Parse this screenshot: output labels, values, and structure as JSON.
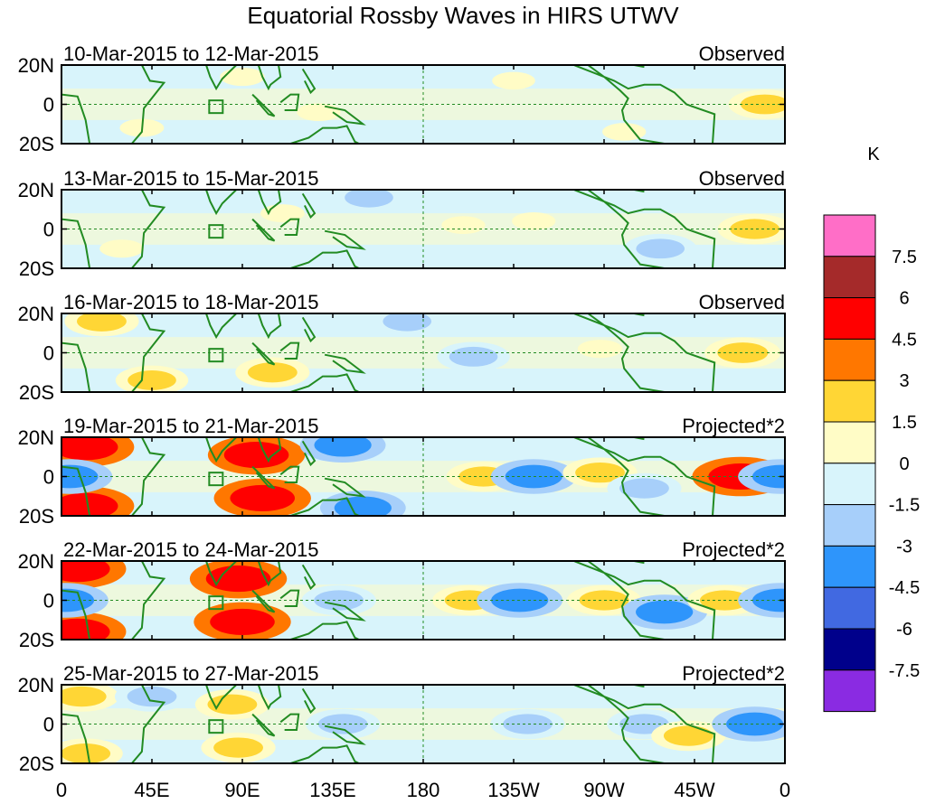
{
  "chart_data": {
    "type": "heatmap",
    "title": "Equatorial Rossby Waves in HIRS UTWV",
    "units": "K",
    "x_ticks": [
      "0",
      "45E",
      "90E",
      "135E",
      "180",
      "135W",
      "90W",
      "45W",
      "0"
    ],
    "y_ticks": [
      "20N",
      "0",
      "20S"
    ],
    "x_range_deg": [
      0,
      360
    ],
    "y_range_deg": [
      -20,
      20
    ],
    "colorbar": {
      "levels": [
        "7.5",
        "6",
        "4.5",
        "3",
        "1.5",
        "0",
        "-1.5",
        "-3",
        "-4.5",
        "-6",
        "-7.5"
      ],
      "colors": [
        "#ff6ec7",
        "#a52a2a",
        "#ff0000",
        "#ff7700",
        "#ffd635",
        "#fffcc6",
        "#d8f4fb",
        "#a7cffa",
        "#2e95fb",
        "#4169e1",
        "#00008b",
        "#8a2be2"
      ]
    },
    "panels": [
      {
        "period": "10-Mar-2015 to 12-Mar-2015",
        "label": "Observed",
        "anomalies": [
          {
            "lon": 40,
            "lat": -12,
            "value": 0.8
          },
          {
            "lon": 90,
            "lat": 14,
            "value": 0.9
          },
          {
            "lon": 128,
            "lat": -4,
            "value": 0.7
          },
          {
            "lon": 225,
            "lat": 12,
            "value": 0.6
          },
          {
            "lon": 280,
            "lat": -14,
            "value": 0.7
          },
          {
            "lon": 350,
            "lat": 0,
            "value": 1.6
          }
        ]
      },
      {
        "period": "13-Mar-2015 to 15-Mar-2015",
        "label": "Observed",
        "anomalies": [
          {
            "lon": 30,
            "lat": -10,
            "value": 0.8
          },
          {
            "lon": 110,
            "lat": 8,
            "value": 0.8
          },
          {
            "lon": 200,
            "lat": 2,
            "value": 0.7
          },
          {
            "lon": 235,
            "lat": 4,
            "value": 0.7
          },
          {
            "lon": 153,
            "lat": 16,
            "value": -1.6
          },
          {
            "lon": 298,
            "lat": -10,
            "value": -1.6
          },
          {
            "lon": 345,
            "lat": 0,
            "value": 1.8
          }
        ]
      },
      {
        "period": "16-Mar-2015 to 18-Mar-2015",
        "label": "Observed",
        "anomalies": [
          {
            "lon": 20,
            "lat": 16,
            "value": 1.8
          },
          {
            "lon": 45,
            "lat": -14,
            "value": 1.6
          },
          {
            "lon": 105,
            "lat": -10,
            "value": 1.8
          },
          {
            "lon": 172,
            "lat": 16,
            "value": -1.6
          },
          {
            "lon": 205,
            "lat": -2,
            "value": -1.6
          },
          {
            "lon": 268,
            "lat": 2,
            "value": 0.9
          },
          {
            "lon": 339,
            "lat": 0,
            "value": 2.0
          }
        ]
      },
      {
        "period": "19-Mar-2015 to 21-Mar-2015",
        "label": "Projected*2",
        "anomalies": [
          {
            "lon": 12,
            "lat": 15,
            "value": 4.6
          },
          {
            "lon": 12,
            "lat": -15,
            "value": 4.6
          },
          {
            "lon": 97,
            "lat": 11,
            "value": 4.6
          },
          {
            "lon": 100,
            "lat": -11,
            "value": 4.6
          },
          {
            "lon": 4,
            "lat": 0,
            "value": -3.2
          },
          {
            "lon": 140,
            "lat": 16,
            "value": -3.2
          },
          {
            "lon": 150,
            "lat": -16,
            "value": -3.2
          },
          {
            "lon": 210,
            "lat": 0,
            "value": 1.8
          },
          {
            "lon": 235,
            "lat": 0,
            "value": -3.2
          },
          {
            "lon": 268,
            "lat": 2,
            "value": 1.8
          },
          {
            "lon": 290,
            "lat": -6,
            "value": -1.8
          },
          {
            "lon": 338,
            "lat": 0,
            "value": 4.6
          },
          {
            "lon": 358,
            "lat": 0,
            "value": -3.2
          }
        ]
      },
      {
        "period": "22-Mar-2015 to 24-Mar-2015",
        "label": "Projected*2",
        "anomalies": [
          {
            "lon": 8,
            "lat": 16,
            "value": 4.6
          },
          {
            "lon": 8,
            "lat": -16,
            "value": 4.6
          },
          {
            "lon": 88,
            "lat": 11,
            "value": 4.6
          },
          {
            "lon": 90,
            "lat": -11,
            "value": 4.6
          },
          {
            "lon": 2,
            "lat": 0,
            "value": -3.2
          },
          {
            "lon": 138,
            "lat": 0,
            "value": -1.8
          },
          {
            "lon": 203,
            "lat": 0,
            "value": 1.8
          },
          {
            "lon": 228,
            "lat": 0,
            "value": -3.2
          },
          {
            "lon": 270,
            "lat": 0,
            "value": 1.8
          },
          {
            "lon": 300,
            "lat": -6,
            "value": -3.2
          },
          {
            "lon": 330,
            "lat": 0,
            "value": 1.8
          },
          {
            "lon": 358,
            "lat": 0,
            "value": -3.2
          }
        ]
      },
      {
        "period": "25-Mar-2015 to 27-Mar-2015",
        "label": "Projected*2",
        "anomalies": [
          {
            "lon": 12,
            "lat": -15,
            "value": 1.8
          },
          {
            "lon": 10,
            "lat": 14,
            "value": 1.8
          },
          {
            "lon": 85,
            "lat": 10,
            "value": 1.8
          },
          {
            "lon": 88,
            "lat": -12,
            "value": 1.8
          },
          {
            "lon": 45,
            "lat": 14,
            "value": -1.8
          },
          {
            "lon": 140,
            "lat": 0,
            "value": -1.8
          },
          {
            "lon": 232,
            "lat": 0,
            "value": -1.8
          },
          {
            "lon": 290,
            "lat": 0,
            "value": -1.8
          },
          {
            "lon": 312,
            "lat": -6,
            "value": 1.8
          },
          {
            "lon": 345,
            "lat": 0,
            "value": -3.2
          }
        ]
      }
    ]
  }
}
